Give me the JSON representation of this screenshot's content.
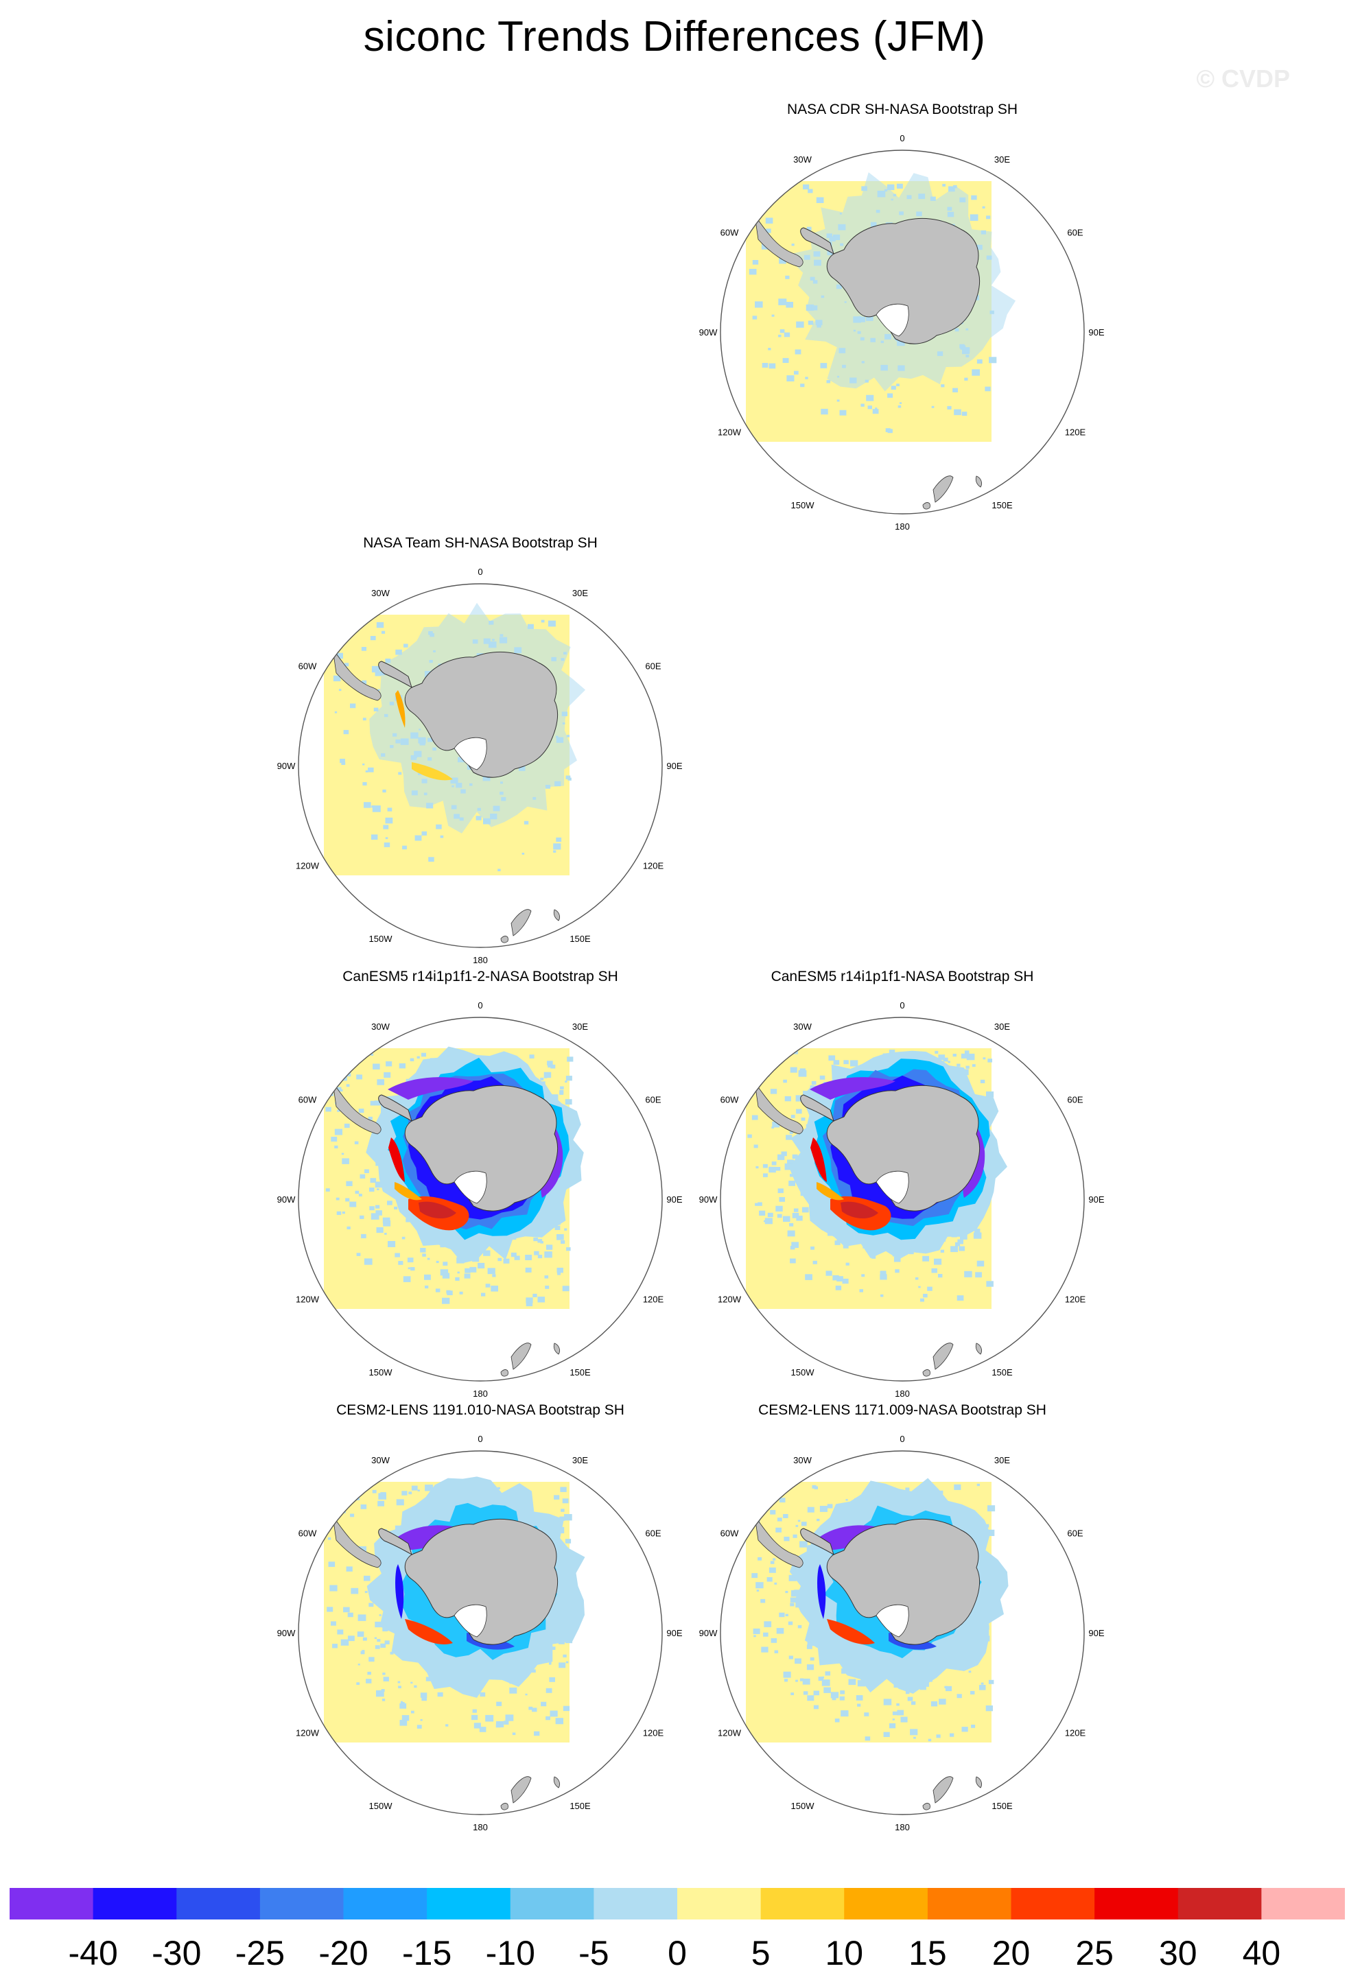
{
  "title": "siconc Trends Differences (JFM)",
  "watermark": "© CVDP",
  "lon_labels": {
    "top": "0",
    "bottom": "180",
    "upper_left": "30W",
    "upper_right": "30E",
    "left_upper": "60W",
    "right_upper": "60E",
    "left": "90W",
    "right": "90E",
    "left_lower": "120W",
    "right_lower": "120E",
    "lower_left": "150W",
    "lower_right": "150E"
  },
  "panels": [
    {
      "id": "nasa-cdr",
      "title": "NASA CDR SH-NASA Bootstrap SH",
      "pattern": "cdr"
    },
    {
      "id": "nasa-team",
      "title": "NASA Team SH-NASA Bootstrap SH",
      "pattern": "team"
    },
    {
      "id": "canesm5-2",
      "title": "CanESM5 r14i1p1f1-2-NASA Bootstrap SH",
      "pattern": "canesm"
    },
    {
      "id": "canesm5-1",
      "title": "CanESM5 r14i1p1f1-NASA Bootstrap SH",
      "pattern": "canesm"
    },
    {
      "id": "cesm2-1191",
      "title": "CESM2-LENS 1191.010-NASA Bootstrap SH",
      "pattern": "cesm"
    },
    {
      "id": "cesm2-1171",
      "title": "CESM2-LENS 1171.009-NASA Bootstrap SH",
      "pattern": "cesm"
    }
  ],
  "colorbar": {
    "colors": [
      "#7f2ff0",
      "#1e10ff",
      "#2c4ff0",
      "#3d7ef0",
      "#1f9dff",
      "#00bfff",
      "#70c8f0",
      "#b1ddf2",
      "#fff599",
      "#ffd633",
      "#ffab00",
      "#ff7c00",
      "#ff3b00",
      "#ee0000",
      "#cd2424",
      "#ffb3b3"
    ],
    "labels": [
      "-40",
      "-30",
      "-25",
      "-20",
      "-15",
      "-10",
      "-5",
      "0",
      "5",
      "10",
      "15",
      "20",
      "25",
      "30",
      "40"
    ]
  },
  "colors": {
    "land": "#c0c0c0",
    "ocean_background": "#fff599",
    "light_blue": "#b1ddf2"
  }
}
